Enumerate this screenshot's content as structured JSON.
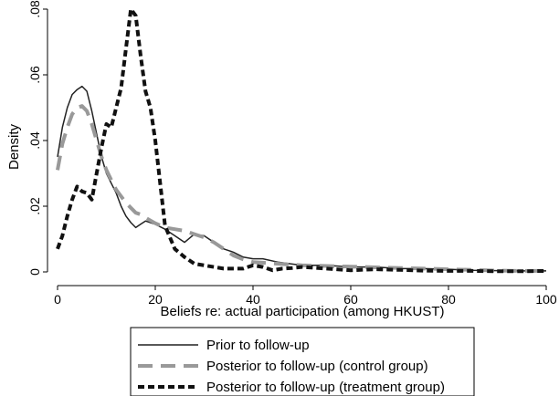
{
  "chart_data": {
    "type": "line",
    "title": "",
    "xlabel": "Beliefs re: actual participation (among HKUST)",
    "ylabel": "Density",
    "xlim": [
      0,
      100
    ],
    "ylim": [
      0,
      0.08
    ],
    "x_ticks": [
      {
        "value": 0,
        "label": "0"
      },
      {
        "value": 20,
        "label": "20"
      },
      {
        "value": 40,
        "label": "40"
      },
      {
        "value": 60,
        "label": "60"
      },
      {
        "value": 80,
        "label": "80"
      },
      {
        "value": 100,
        "label": "100"
      }
    ],
    "y_ticks": [
      {
        "value": 0,
        "label": "0"
      },
      {
        "value": 0.02,
        "label": ".02"
      },
      {
        "value": 0.04,
        "label": ".04"
      },
      {
        "value": 0.06,
        "label": ".06"
      },
      {
        "value": 0.08,
        "label": ".08"
      }
    ],
    "grid": false,
    "legend_position": "bottom",
    "series": [
      {
        "name": "Prior to follow-up",
        "color": "#222222",
        "style": "solid",
        "x": [
          0,
          1,
          2,
          3,
          4,
          5,
          6,
          7,
          8,
          9,
          10,
          11,
          12,
          13,
          14,
          15,
          16,
          17,
          18,
          20,
          22,
          24,
          26,
          28,
          30,
          32,
          34,
          36,
          38,
          40,
          42,
          45,
          50,
          55,
          60,
          65,
          70,
          75,
          80,
          85,
          90,
          95,
          100
        ],
        "y": [
          0.035,
          0.044,
          0.05,
          0.054,
          0.0555,
          0.0565,
          0.055,
          0.049,
          0.042,
          0.035,
          0.03,
          0.027,
          0.024,
          0.02,
          0.017,
          0.015,
          0.0135,
          0.0145,
          0.0155,
          0.0145,
          0.013,
          0.011,
          0.009,
          0.0115,
          0.011,
          0.009,
          0.007,
          0.006,
          0.0045,
          0.004,
          0.004,
          0.003,
          0.002,
          0.002,
          0.0015,
          0.0015,
          0.001,
          0.001,
          0.0008,
          0.0005,
          0.0004,
          0.0003,
          0.0003
        ]
      },
      {
        "name": "Posterior to follow-up (control group)",
        "color": "#999999",
        "style": "longdash",
        "x": [
          0,
          1,
          2,
          3,
          4,
          5,
          6,
          7,
          8,
          9,
          10,
          11,
          12,
          13,
          14,
          15,
          16,
          17,
          18,
          20,
          22,
          24,
          26,
          28,
          30,
          32,
          34,
          36,
          38,
          40,
          45,
          50,
          55,
          60,
          65,
          70,
          75,
          80,
          85,
          90,
          95,
          100
        ],
        "y": [
          0.031,
          0.039,
          0.044,
          0.048,
          0.05,
          0.0505,
          0.049,
          0.045,
          0.04,
          0.035,
          0.031,
          0.028,
          0.025,
          0.023,
          0.021,
          0.0195,
          0.018,
          0.0175,
          0.0165,
          0.0148,
          0.0135,
          0.013,
          0.0125,
          0.0115,
          0.0105,
          0.009,
          0.007,
          0.005,
          0.0038,
          0.003,
          0.0025,
          0.002,
          0.0018,
          0.0016,
          0.0014,
          0.0012,
          0.001,
          0.0008,
          0.0006,
          0.0004,
          0.0003,
          0.0003
        ]
      },
      {
        "name": "Posterior to follow-up (treatment group)",
        "color": "#111111",
        "style": "shortdash",
        "x": [
          0,
          1,
          2,
          3,
          4,
          5,
          6,
          7,
          8,
          9,
          10,
          11,
          12,
          13,
          14,
          15,
          16,
          17,
          18,
          19,
          20,
          22,
          24,
          26,
          28,
          30,
          32,
          34,
          36,
          38,
          40,
          42,
          44,
          46,
          48,
          50,
          55,
          60,
          65,
          70,
          75,
          80,
          85,
          90,
          95,
          100
        ],
        "y": [
          0.007,
          0.011,
          0.017,
          0.022,
          0.026,
          0.0245,
          0.024,
          0.022,
          0.03,
          0.038,
          0.045,
          0.044,
          0.05,
          0.056,
          0.068,
          0.08,
          0.078,
          0.066,
          0.055,
          0.05,
          0.04,
          0.014,
          0.007,
          0.0045,
          0.0025,
          0.002,
          0.0015,
          0.001,
          0.001,
          0.001,
          0.002,
          0.0015,
          0.0005,
          0.001,
          0.0012,
          0.0015,
          0.001,
          0.0005,
          0.0008,
          0.0006,
          0.0004,
          0.0003,
          0.0003,
          0.0002,
          0.0002,
          0.0003
        ]
      }
    ]
  }
}
